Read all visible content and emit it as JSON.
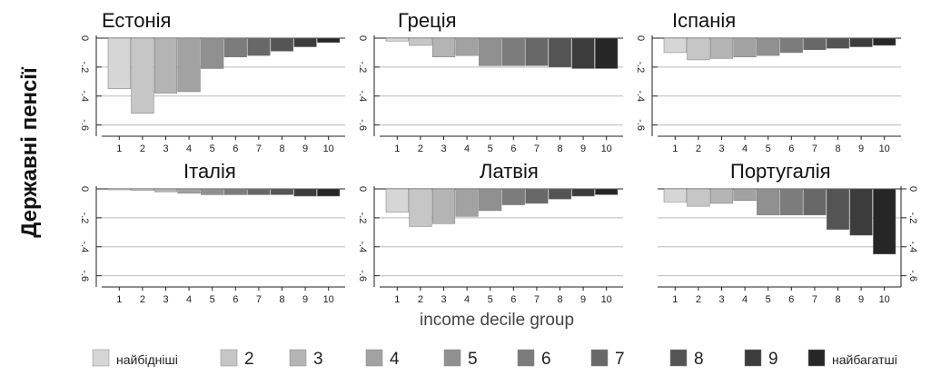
{
  "chart_data": {
    "type": "bar",
    "ylabel": "Державні пенсії",
    "xlabel": "income decile group",
    "categories": [
      "1",
      "2",
      "3",
      "4",
      "5",
      "6",
      "7",
      "8",
      "9",
      "10"
    ],
    "yticks": [
      "0",
      "-.2",
      "-.4",
      "-.6"
    ],
    "ylim": [
      -0.65,
      0.02
    ],
    "grid": true,
    "legend": {
      "position": "bottom",
      "entries": [
        "найбідніші",
        "2",
        "3",
        "4",
        "5",
        "6",
        "7",
        "8",
        "9",
        "найбагатші"
      ],
      "colors": [
        "#d6d6d6",
        "#c6c6c6",
        "#b4b4b4",
        "#a2a2a2",
        "#909090",
        "#7c7c7c",
        "#686868",
        "#545454",
        "#3c3c3c",
        "#262626"
      ]
    },
    "panels": [
      {
        "title": "Естонія",
        "values": [
          -0.35,
          -0.52,
          -0.38,
          -0.37,
          -0.21,
          -0.13,
          -0.12,
          -0.09,
          -0.06,
          -0.03
        ]
      },
      {
        "title": "Греція",
        "values": [
          -0.02,
          -0.05,
          -0.13,
          -0.12,
          -0.19,
          -0.19,
          -0.19,
          -0.2,
          -0.21,
          -0.21
        ]
      },
      {
        "title": "Іспанія",
        "values": [
          -0.1,
          -0.15,
          -0.14,
          -0.13,
          -0.12,
          -0.1,
          -0.08,
          -0.07,
          -0.06,
          -0.05
        ]
      },
      {
        "title": "Італія",
        "values": [
          0.0,
          -0.01,
          -0.02,
          -0.03,
          -0.04,
          -0.04,
          -0.04,
          -0.04,
          -0.05,
          -0.05
        ]
      },
      {
        "title": "Латвія",
        "values": [
          -0.16,
          -0.26,
          -0.24,
          -0.19,
          -0.15,
          -0.11,
          -0.1,
          -0.07,
          -0.05,
          -0.04
        ]
      },
      {
        "title": "Португалія",
        "values": [
          -0.09,
          -0.12,
          -0.1,
          -0.08,
          -0.18,
          -0.18,
          -0.18,
          -0.28,
          -0.32,
          -0.45
        ]
      }
    ]
  }
}
